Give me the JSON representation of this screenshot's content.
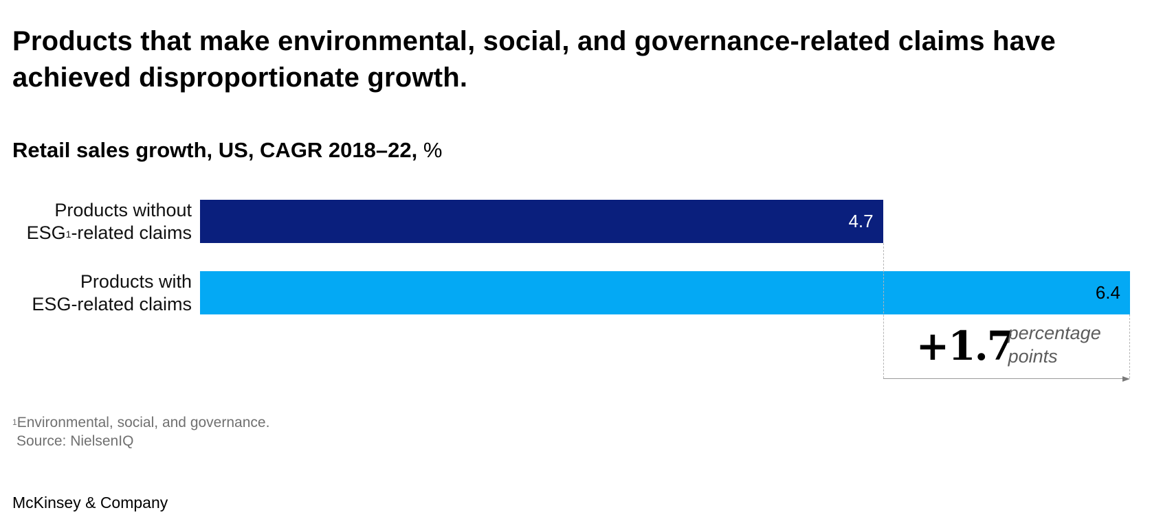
{
  "title": "Products that make environmental, social, and governance-related claims have achieved disproportionate growth.",
  "subtitle": {
    "bold": "Retail sales growth, US, CAGR 2018–22,",
    "unit": "%"
  },
  "chart_data": {
    "type": "bar",
    "orientation": "horizontal",
    "title": "Retail sales growth, US, CAGR 2018–22, %",
    "categories": [
      {
        "line1": "Products without",
        "line2_pre": "ESG",
        "line2_sup": "1",
        "line2_post": "-related claims"
      },
      {
        "line1": "Products with",
        "line2_pre": "ESG-related claims",
        "line2_sup": "",
        "line2_post": ""
      }
    ],
    "values": [
      4.7,
      6.4
    ],
    "value_labels": [
      "4.7",
      "6.4"
    ],
    "colors": [
      "#0a1f7d",
      "#04a9f4"
    ],
    "value_label_colors": [
      "#ffffff",
      "#000000"
    ],
    "xlim": [
      0,
      6.4
    ],
    "grid": false,
    "legend": "none",
    "annotation": {
      "value": "+1.7",
      "unit_line1": "percentage",
      "unit_line2": "points"
    }
  },
  "footnote": {
    "sup": "1",
    "text": "Environmental, social, and governance.",
    "source": "Source: NielsenIQ"
  },
  "brand": "McKinsey & Company"
}
